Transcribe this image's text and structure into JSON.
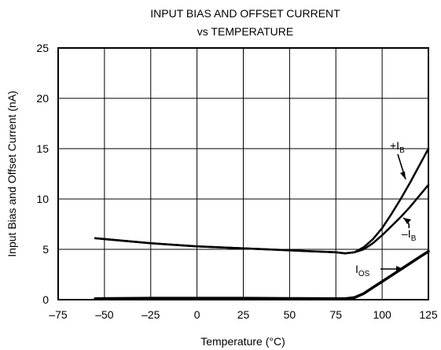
{
  "chart_data": {
    "type": "line",
    "title_line1": "INPUT BIAS AND OFFSET CURRENT",
    "title_line2": "vs TEMPERATURE",
    "xlabel": "Temperature (°C)",
    "ylabel": "Input Bias and Offset Current (nA)",
    "xlim": [
      -75,
      125
    ],
    "ylim": [
      0,
      25
    ],
    "x_ticks": [
      -75,
      -50,
      -25,
      0,
      25,
      50,
      75,
      100,
      125
    ],
    "y_ticks": [
      0,
      5,
      10,
      15,
      20,
      25
    ],
    "grid": true,
    "series": [
      {
        "name": "+IB",
        "main": "+I",
        "sub": "B",
        "x": [
          -55,
          -25,
          0,
          25,
          50,
          75,
          80,
          85,
          90,
          95,
          100,
          105,
          110,
          115,
          120,
          125
        ],
        "y": [
          6.1,
          5.6,
          5.3,
          5.1,
          4.9,
          4.7,
          4.6,
          4.7,
          5.2,
          6.0,
          7.1,
          8.5,
          10.0,
          11.6,
          13.3,
          15.0
        ]
      },
      {
        "name": "-IB",
        "main": "–I",
        "sub": "B",
        "x": [
          -55,
          -25,
          0,
          25,
          50,
          75,
          80,
          85,
          90,
          95,
          100,
          105,
          110,
          115,
          120,
          125
        ],
        "y": [
          6.1,
          5.6,
          5.3,
          5.1,
          4.9,
          4.7,
          4.6,
          4.7,
          5.0,
          5.6,
          6.4,
          7.3,
          8.2,
          9.2,
          10.3,
          11.4
        ]
      },
      {
        "name": "IOS",
        "main": "I",
        "sub": "OS",
        "x": [
          -55,
          -25,
          0,
          25,
          50,
          75,
          80,
          85,
          90,
          95,
          100,
          105,
          110,
          115,
          120,
          125
        ],
        "y": [
          0.1,
          0.15,
          0.15,
          0.15,
          0.12,
          0.1,
          0.1,
          0.2,
          0.6,
          1.2,
          1.8,
          2.4,
          3.0,
          3.6,
          4.2,
          4.8
        ]
      }
    ]
  }
}
